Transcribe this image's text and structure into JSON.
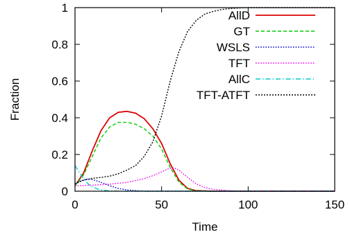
{
  "chart_data": {
    "type": "line",
    "xlabel": "Time",
    "ylabel": "Fraction",
    "xlim": [
      0,
      150
    ],
    "ylim": [
      0,
      1
    ],
    "xticks": [
      0,
      50,
      100,
      150
    ],
    "yticks": [
      0,
      0.2,
      0.4,
      0.6,
      0.8,
      1
    ],
    "xtick_labels": [
      "0",
      "50",
      "100",
      "150"
    ],
    "ytick_labels": [
      "0",
      "0.2",
      "0.4",
      "0.6",
      "0.8",
      "1"
    ],
    "grid": false,
    "legend_position": "top-right",
    "series": [
      {
        "name": "AllD",
        "color": "#dd0000",
        "dash": "solid",
        "x": [
          0,
          5,
          10,
          15,
          20,
          25,
          30,
          35,
          40,
          45,
          50,
          55,
          60,
          65,
          70,
          80,
          100,
          150
        ],
        "y": [
          0.03,
          0.1,
          0.22,
          0.33,
          0.4,
          0.43,
          0.435,
          0.425,
          0.395,
          0.34,
          0.26,
          0.15,
          0.06,
          0.015,
          0.003,
          0.0,
          0.0,
          0.0
        ]
      },
      {
        "name": "GT",
        "color": "#00cc00",
        "dash": "dashed",
        "x": [
          0,
          5,
          10,
          15,
          20,
          25,
          30,
          35,
          40,
          45,
          50,
          55,
          60,
          65,
          70,
          80,
          100,
          150
        ],
        "y": [
          0.03,
          0.09,
          0.19,
          0.29,
          0.35,
          0.375,
          0.375,
          0.365,
          0.34,
          0.3,
          0.23,
          0.13,
          0.05,
          0.012,
          0.002,
          0.0,
          0.0,
          0.0
        ]
      },
      {
        "name": "WSLS",
        "color": "#0000cc",
        "dash": "dotted",
        "x": [
          0,
          3,
          6,
          9,
          12,
          16,
          20,
          25,
          30,
          35,
          40,
          50,
          70,
          100,
          150
        ],
        "y": [
          0.04,
          0.055,
          0.065,
          0.065,
          0.058,
          0.045,
          0.03,
          0.015,
          0.007,
          0.003,
          0.0,
          0.0,
          0.0,
          0.0,
          0.0
        ]
      },
      {
        "name": "TFT",
        "color": "#ee00ee",
        "dash": "dotted",
        "x": [
          0,
          10,
          20,
          30,
          40,
          45,
          50,
          54,
          57,
          60,
          65,
          70,
          75,
          80,
          90,
          100,
          150
        ],
        "y": [
          0.03,
          0.033,
          0.038,
          0.048,
          0.068,
          0.085,
          0.105,
          0.122,
          0.127,
          0.115,
          0.075,
          0.04,
          0.02,
          0.01,
          0.002,
          0.0,
          0.0
        ]
      },
      {
        "name": "AllC",
        "color": "#00cccc",
        "dash": "dashdot",
        "x": [
          0,
          2,
          4,
          6,
          8,
          10,
          13,
          16,
          20,
          30,
          50,
          150
        ],
        "y": [
          0.14,
          0.11,
          0.08,
          0.055,
          0.037,
          0.024,
          0.012,
          0.006,
          0.002,
          0.0,
          0.0,
          0.0
        ]
      },
      {
        "name": "TFT-ATFT",
        "color": "#000000",
        "dash": "dense",
        "x": [
          0,
          5,
          10,
          15,
          20,
          25,
          30,
          35,
          40,
          45,
          50,
          55,
          60,
          65,
          70,
          75,
          80,
          85,
          90,
          95,
          100,
          110,
          150
        ],
        "y": [
          0.04,
          0.06,
          0.07,
          0.075,
          0.082,
          0.095,
          0.115,
          0.14,
          0.19,
          0.27,
          0.41,
          0.6,
          0.76,
          0.87,
          0.93,
          0.965,
          0.98,
          0.99,
          0.995,
          0.998,
          1.0,
          1.0,
          1.0
        ]
      }
    ]
  }
}
